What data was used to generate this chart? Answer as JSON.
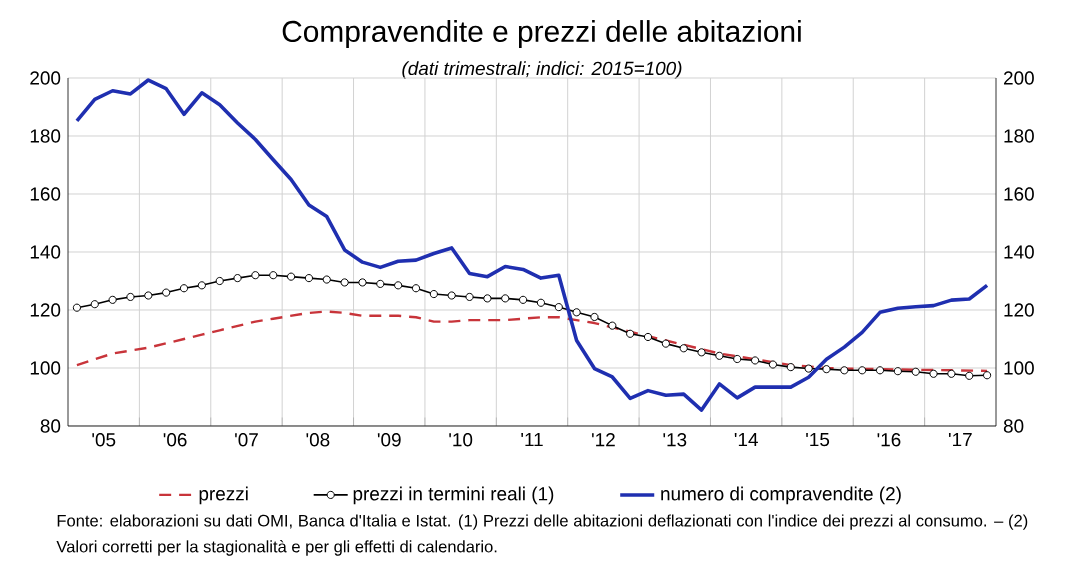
{
  "chart_data": {
    "type": "line",
    "title": "Compravendite e prezzi delle abitazioni",
    "subtitle": "(dati trimestrali; indici: 2015=100)",
    "x": [
      2004.625,
      2004.875,
      2005.125,
      2005.375,
      2005.625,
      2005.875,
      2006.125,
      2006.375,
      2006.625,
      2006.875,
      2007.125,
      2007.375,
      2007.625,
      2007.875,
      2008.125,
      2008.375,
      2008.625,
      2008.875,
      2009.125,
      2009.375,
      2009.625,
      2009.875,
      2010.125,
      2010.375,
      2010.625,
      2010.875,
      2011.125,
      2011.375,
      2011.625,
      2011.875,
      2012.125,
      2012.375,
      2012.625,
      2012.875,
      2013.125,
      2013.375,
      2013.625,
      2013.875,
      2014.125,
      2014.375,
      2014.625,
      2014.875,
      2015.125,
      2015.375,
      2015.625,
      2015.875,
      2016.125,
      2016.375,
      2016.625,
      2016.875,
      2017.125,
      2017.375
    ],
    "series": [
      {
        "name": "prezzi",
        "color": "#c8343a",
        "line_style": "dashed",
        "marker": "none",
        "values": [
          101,
          103,
          105,
          106,
          107,
          108.5,
          110,
          111.5,
          113,
          114.5,
          116,
          117,
          118,
          119,
          119.5,
          119,
          118,
          118,
          118,
          117.5,
          116,
          116,
          116.5,
          116.5,
          116.5,
          117,
          117.5,
          117.5,
          116.5,
          115.5,
          114,
          112.5,
          111,
          109.5,
          108,
          106.5,
          105,
          104,
          103,
          102,
          101,
          100.5,
          100,
          99.8,
          99.7,
          99.6,
          99.5,
          99.4,
          99.3,
          99.2,
          99.1,
          99
        ]
      },
      {
        "name": "prezzi in termini reali (1)",
        "color": "#000000",
        "line_style": "solid",
        "marker": "circle",
        "values": [
          120.8,
          122,
          123.5,
          124.5,
          125,
          126,
          127.5,
          128.5,
          130,
          131,
          132,
          132,
          131.5,
          131,
          130.5,
          129.5,
          129.5,
          129,
          128.5,
          127.5,
          125.5,
          125,
          124.5,
          124,
          124,
          123.5,
          122.5,
          121,
          119.2,
          117.6,
          114.6,
          111.8,
          110.7,
          108.4,
          106.8,
          105.4,
          104.2,
          103.1,
          102.6,
          101.2,
          100.3,
          99.8,
          99.6,
          99.2,
          99.2,
          99.2,
          98.9,
          98.7,
          98,
          98,
          97.3,
          97.5
        ]
      },
      {
        "name": "numero di compravendite (2)",
        "color": "#1f2fb0",
        "line_style": "solid",
        "marker": "none",
        "values": [
          185.2,
          192.6,
          195.6,
          194.5,
          199.3,
          196.3,
          187.5,
          194.9,
          190.8,
          184.5,
          178.8,
          171.8,
          165,
          156.2,
          152.2,
          140.7,
          136.5,
          134.7,
          136.8,
          137.2,
          139.5,
          141.4,
          132.6,
          131.5,
          135,
          134,
          131,
          132,
          109.5,
          99.8,
          96.9,
          89.5,
          92.2,
          90.6,
          91,
          85.5,
          94.5,
          89.7,
          93.4,
          93.4,
          93.4,
          96.8,
          103,
          107.2,
          112.3,
          119.2,
          120.6,
          121.1,
          121.5,
          123.4,
          123.8,
          128.5
        ]
      }
    ],
    "xlim": [
      2004.5,
      2017.5
    ],
    "xticks": [
      {
        "value": 2005,
        "label": "'05"
      },
      {
        "value": 2006,
        "label": "'06"
      },
      {
        "value": 2007,
        "label": "'07"
      },
      {
        "value": 2008,
        "label": "'08"
      },
      {
        "value": 2009,
        "label": "'09"
      },
      {
        "value": 2010,
        "label": "'10"
      },
      {
        "value": 2011,
        "label": "'11"
      },
      {
        "value": 2012,
        "label": "'12"
      },
      {
        "value": 2013,
        "label": "'13"
      },
      {
        "value": 2014,
        "label": "'14"
      },
      {
        "value": 2015,
        "label": "'15"
      },
      {
        "value": 2016,
        "label": "'16"
      },
      {
        "value": 2017,
        "label": "'17"
      },
      {
        "value": 2005.5,
        "label": null
      },
      {
        "value": 2006.5,
        "label": null
      },
      {
        "value": 2007.5,
        "label": null
      },
      {
        "value": 2008.5,
        "label": null
      },
      {
        "value": 2009.5,
        "label": null
      },
      {
        "value": 2010.5,
        "label": null
      },
      {
        "value": 2011.5,
        "label": null
      },
      {
        "value": 2012.5,
        "label": null
      },
      {
        "value": 2013.5,
        "label": null
      },
      {
        "value": 2014.5,
        "label": null
      },
      {
        "value": 2015.5,
        "label": null
      },
      {
        "value": 2016.5,
        "label": null
      }
    ],
    "ylim": [
      80,
      200
    ],
    "yticks": [
      80,
      100,
      120,
      140,
      160,
      180,
      200
    ],
    "y2lim": [
      80,
      200
    ],
    "y2ticks": [
      80,
      100,
      120,
      140,
      160,
      180,
      200
    ],
    "grid": true,
    "legend": "bottom",
    "annotations": [
      "Fonte: elaborazioni su dati OMI, Banca d'Italia e Istat. (1) Prezzi delle abitazioni deflazionati con l'indice dei prezzi al consumo. – (2) Valori corretti per la stagionalità e per gli effetti di calendario."
    ]
  }
}
